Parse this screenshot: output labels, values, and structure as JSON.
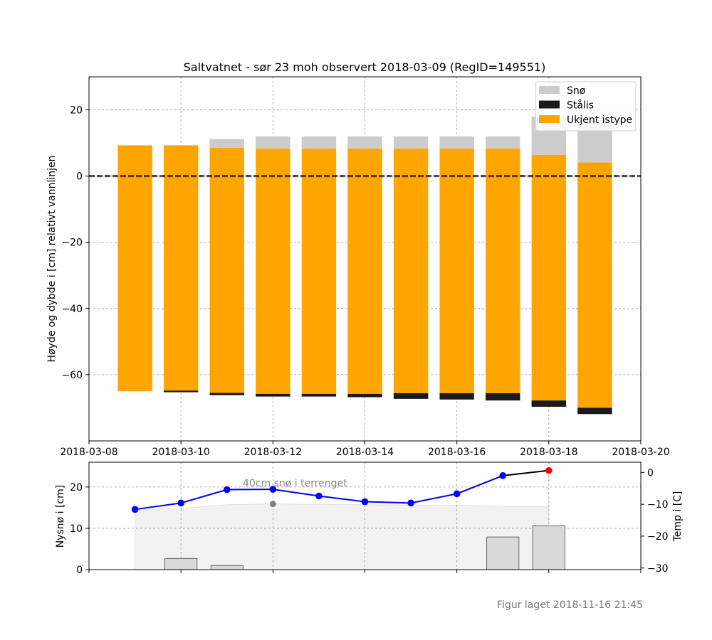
{
  "footer": "Figur laget 2018-11-16 21:45",
  "colors": {
    "snow": "#cccccc",
    "black_ice": "#1a1a1a",
    "unknown_ice": "#ffa500",
    "temp_line_forecast": "#0000ff",
    "temp_line_obs": "#000000",
    "temp_point_red": "#ff0000",
    "snow_terrain_point": "#808080",
    "snow_area": "#f2f2f2",
    "new_snow_bar": "#d9d9d9"
  },
  "chart_data": [
    {
      "type": "bar",
      "title": "Saltvatnet - sør 23 moh observert 2018-03-09 (RegID=149551)",
      "ylabel": "Høyde og dybde i [cm] relativt vannlinjen",
      "xlim": [
        "2018-03-08",
        "2018-03-20"
      ],
      "ylim": [
        -80,
        30
      ],
      "x_ticks": [
        "2018-03-08",
        "2018-03-10",
        "2018-03-12",
        "2018-03-14",
        "2018-03-16",
        "2018-03-18",
        "2018-03-20"
      ],
      "y_ticks": [
        20,
        0,
        -20,
        -40,
        -60
      ],
      "grid": true,
      "legend_position": "top-right",
      "legend": [
        {
          "name": "Snø",
          "color": "#cccccc"
        },
        {
          "name": "Stålis",
          "color": "#1a1a1a"
        },
        {
          "name": "Ukjent istype",
          "color": "#ffa500"
        }
      ],
      "water_line": 0,
      "bars": [
        {
          "date": "2018-03-09",
          "snow": [
            9.3,
            9.3
          ],
          "unknown_ice": [
            -65,
            9.3
          ],
          "black_ice": null
        },
        {
          "date": "2018-03-10",
          "snow": [
            9.3,
            9.3
          ],
          "unknown_ice": [
            -64.8,
            9.3
          ],
          "black_ice": [
            -65.3,
            -64.8
          ]
        },
        {
          "date": "2018-03-11",
          "snow": [
            8.5,
            11.2
          ],
          "unknown_ice": [
            -65.5,
            8.5
          ],
          "black_ice": [
            -66.2,
            -65.5
          ]
        },
        {
          "date": "2018-03-12",
          "snow": [
            8.3,
            12
          ],
          "unknown_ice": [
            -65.8,
            8.3
          ],
          "black_ice": [
            -66.6,
            -65.8
          ]
        },
        {
          "date": "2018-03-13",
          "snow": [
            8.3,
            12
          ],
          "unknown_ice": [
            -65.8,
            8.3
          ],
          "black_ice": [
            -66.6,
            -65.8
          ]
        },
        {
          "date": "2018-03-14",
          "snow": [
            8.3,
            12
          ],
          "unknown_ice": [
            -65.8,
            8.3
          ],
          "black_ice": [
            -66.8,
            -65.8
          ]
        },
        {
          "date": "2018-03-15",
          "snow": [
            8.3,
            12
          ],
          "unknown_ice": [
            -65.6,
            8.3
          ],
          "black_ice": [
            -67.3,
            -65.6
          ]
        },
        {
          "date": "2018-03-16",
          "snow": [
            8.3,
            12
          ],
          "unknown_ice": [
            -65.6,
            8.3
          ],
          "black_ice": [
            -67.5,
            -65.6
          ]
        },
        {
          "date": "2018-03-17",
          "snow": [
            8.3,
            12
          ],
          "unknown_ice": [
            -65.6,
            8.3
          ],
          "black_ice": [
            -67.8,
            -65.6
          ]
        },
        {
          "date": "2018-03-18",
          "snow": [
            6.4,
            18
          ],
          "unknown_ice": [
            -67.8,
            6.4
          ],
          "black_ice": [
            -69.7,
            -67.8
          ]
        },
        {
          "date": "2018-03-19",
          "snow": [
            4.1,
            18
          ],
          "unknown_ice": [
            -70,
            4.1
          ],
          "black_ice": [
            -71.9,
            -70
          ]
        }
      ]
    },
    {
      "type": "bar",
      "ylabel": "Nysnø i [cm]",
      "ylabel_right": "Temp i [C]",
      "xlim": [
        "2018-03-08",
        "2018-03-20"
      ],
      "ylim": [
        0,
        26
      ],
      "ylim_right": [
        -30.5,
        3.2
      ],
      "y_ticks": [
        0,
        10,
        20
      ],
      "y_ticks_right": [
        0,
        -10,
        -20,
        -30
      ],
      "grid": true,
      "annotation": "40cm snø i terrenget",
      "new_snow": [
        {
          "date": "2018-03-10",
          "value": 2.7
        },
        {
          "date": "2018-03-11",
          "value": 1.0
        },
        {
          "date": "2018-03-17",
          "value": 7.9
        },
        {
          "date": "2018-03-18",
          "value": 10.6
        }
      ],
      "snow_depth_terrain_area": [
        {
          "date": "2018-03-09",
          "value": 14.5
        },
        {
          "date": "2018-03-10",
          "value": 14.8
        },
        {
          "date": "2018-03-11",
          "value": 15.7
        },
        {
          "date": "2018-03-12",
          "value": 15.9
        },
        {
          "date": "2018-03-13",
          "value": 15.8
        },
        {
          "date": "2018-03-14",
          "value": 15.7
        },
        {
          "date": "2018-03-15",
          "value": 15.6
        },
        {
          "date": "2018-03-16",
          "value": 15.6
        },
        {
          "date": "2018-03-17",
          "value": 15.3
        },
        {
          "date": "2018-03-18",
          "value": 15.3
        }
      ],
      "snow_terrain_point": {
        "date": "2018-03-12",
        "value": 15.9
      },
      "temperature": [
        {
          "date": "2018-03-09",
          "value": -11.6
        },
        {
          "date": "2018-03-10",
          "value": -9.6
        },
        {
          "date": "2018-03-11",
          "value": -5.4
        },
        {
          "date": "2018-03-12",
          "value": -5.3
        },
        {
          "date": "2018-03-13",
          "value": -7.4
        },
        {
          "date": "2018-03-14",
          "value": -9.2
        },
        {
          "date": "2018-03-15",
          "value": -9.6
        },
        {
          "date": "2018-03-16",
          "value": -6.7
        },
        {
          "date": "2018-03-17",
          "value": -1.0
        },
        {
          "date": "2018-03-18",
          "value": 0.6
        }
      ],
      "temperature_observed_point": {
        "date": "2018-03-18",
        "value": 0.6
      }
    }
  ]
}
